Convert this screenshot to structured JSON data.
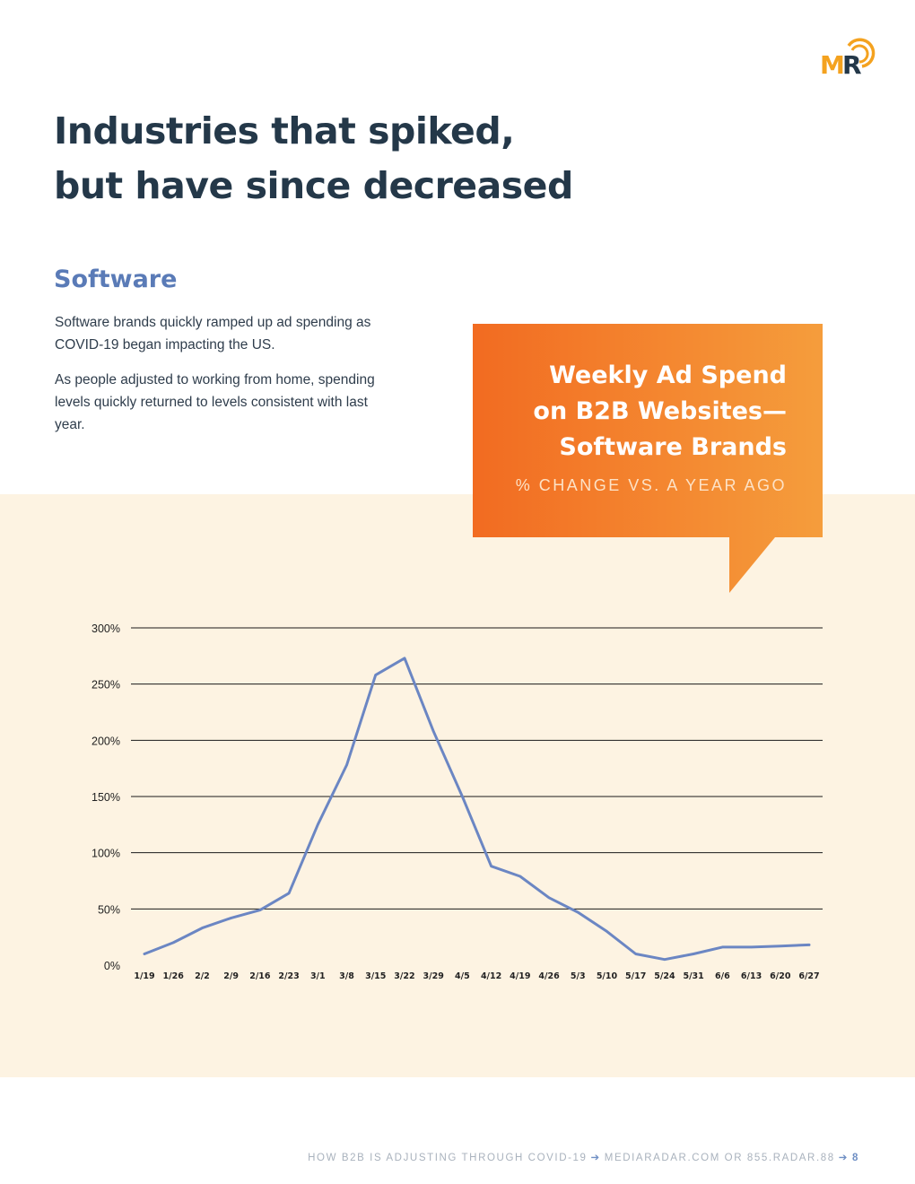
{
  "logo": {
    "text": "MR"
  },
  "page": {
    "title_line1": "Industries that spiked,",
    "title_line2": "but have since decreased"
  },
  "section": {
    "title": "Software",
    "para1": "Software brands quickly ramped up ad spending as COVID-19 began impacting the US.",
    "para2": "As people adjusted to working from home, spending levels quickly returned to levels consistent with last year."
  },
  "callout": {
    "title_line1": "Weekly Ad Spend",
    "title_line2": "on B2B Websites—",
    "title_line3": "Software Brands",
    "subtitle": "% CHANGE VS. A YEAR AGO"
  },
  "colors": {
    "title": "#243849",
    "accent_blue": "#5a7bb7",
    "line": "#6b86c3",
    "callout_start": "#f26b21",
    "callout_end": "#f59d3c",
    "beige": "#fdf3e2",
    "logo_orange": "#f4a21f"
  },
  "chart_data": {
    "type": "line",
    "title": "Weekly Ad Spend on B2B Websites—Software Brands",
    "ylabel": "% change vs. a year ago",
    "xlabel": "",
    "ylim": [
      0,
      300
    ],
    "yticks": [
      0,
      50,
      100,
      150,
      200,
      250,
      300
    ],
    "ytick_labels": [
      "0%",
      "50%",
      "100%",
      "150%",
      "200%",
      "250%",
      "300%"
    ],
    "grid": true,
    "categories": [
      "1/19",
      "1/26",
      "2/2",
      "2/9",
      "2/16",
      "2/23",
      "3/1",
      "3/8",
      "3/15",
      "3/22",
      "3/29",
      "4/5",
      "4/12",
      "4/19",
      "4/26",
      "5/3",
      "5/10",
      "5/17",
      "5/24",
      "5/31",
      "6/6",
      "6/13",
      "6/20",
      "6/27"
    ],
    "series": [
      {
        "name": "Software",
        "values": [
          10,
          20,
          33,
          42,
          49,
          64,
          125,
          178,
          258,
          273,
          208,
          150,
          88,
          79,
          60,
          47,
          30,
          10,
          5,
          10,
          16,
          16,
          17,
          18
        ]
      }
    ]
  },
  "footer": {
    "left": "HOW B2B IS ADJUSTING THROUGH COVID-19",
    "right": "MEDIARADAR.COM OR 855.RADAR.88",
    "page": "8"
  }
}
